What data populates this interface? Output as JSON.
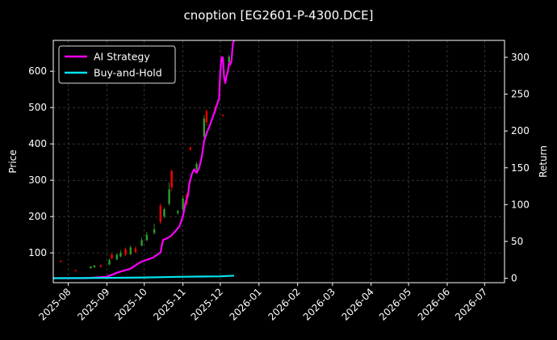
{
  "chart_data": {
    "type": "line",
    "title": "cnoption [EG2601-P-4300.DCE]",
    "xlabel": "",
    "ylabel": "Price",
    "y2label": "Return",
    "xlim": [
      "2025-07-20",
      "2026-07-17"
    ],
    "ylim": [
      18,
      685
    ],
    "y2lim": [
      -6,
      323
    ],
    "xticks": [
      "2025-08",
      "2025-09",
      "2025-10",
      "2025-11",
      "2025-12",
      "2026-01",
      "2026-02",
      "2026-03",
      "2026-04",
      "2026-05",
      "2026-06",
      "2026-07"
    ],
    "yticks": [
      100,
      200,
      300,
      400,
      500,
      600
    ],
    "y2ticks": [
      0,
      50,
      100,
      150,
      200,
      250,
      300
    ],
    "grid": true,
    "legend": "top-left",
    "colors": {
      "up": "#2ca02c",
      "down": "#ff0000",
      "ai": "#ff00ff",
      "bh": "#00e5ee",
      "grid": "#555555"
    },
    "candles": [
      {
        "x": "2025-07-26",
        "o": 78,
        "c": 75,
        "h": 80,
        "l": 74
      },
      {
        "x": "2025-08-07",
        "o": 52,
        "c": 50,
        "h": 54,
        "l": 49
      },
      {
        "x": "2025-08-19",
        "o": 58,
        "c": 62,
        "h": 64,
        "l": 56
      },
      {
        "x": "2025-08-22",
        "o": 60,
        "c": 65,
        "h": 67,
        "l": 59
      },
      {
        "x": "2025-08-27",
        "o": 66,
        "c": 62,
        "h": 68,
        "l": 60
      },
      {
        "x": "2025-09-03",
        "o": 68,
        "c": 80,
        "h": 85,
        "l": 66
      },
      {
        "x": "2025-09-05",
        "o": 95,
        "c": 85,
        "h": 100,
        "l": 82
      },
      {
        "x": "2025-09-09",
        "o": 82,
        "c": 95,
        "h": 98,
        "l": 80
      },
      {
        "x": "2025-09-12",
        "o": 90,
        "c": 100,
        "h": 108,
        "l": 88
      },
      {
        "x": "2025-09-16",
        "o": 110,
        "c": 95,
        "h": 115,
        "l": 92
      },
      {
        "x": "2025-09-20",
        "o": 96,
        "c": 115,
        "h": 120,
        "l": 94
      },
      {
        "x": "2025-09-24",
        "o": 112,
        "c": 102,
        "h": 118,
        "l": 99
      },
      {
        "x": "2025-09-29",
        "o": 120,
        "c": 135,
        "h": 142,
        "l": 118
      },
      {
        "x": "2025-10-03",
        "o": 135,
        "c": 150,
        "h": 158,
        "l": 132
      },
      {
        "x": "2025-10-09",
        "o": 155,
        "c": 165,
        "h": 180,
        "l": 150
      },
      {
        "x": "2025-10-14",
        "o": 230,
        "c": 185,
        "h": 236,
        "l": 180
      },
      {
        "x": "2025-10-17",
        "o": 200,
        "c": 220,
        "h": 225,
        "l": 196
      },
      {
        "x": "2025-10-21",
        "o": 235,
        "c": 275,
        "h": 295,
        "l": 230
      },
      {
        "x": "2025-10-23",
        "o": 325,
        "c": 280,
        "h": 330,
        "l": 270
      },
      {
        "x": "2025-10-28",
        "o": 210,
        "c": 215,
        "h": 218,
        "l": 205
      },
      {
        "x": "2025-11-01",
        "o": 220,
        "c": 250,
        "h": 258,
        "l": 215
      },
      {
        "x": "2025-11-04",
        "o": 260,
        "c": 235,
        "h": 265,
        "l": 230
      },
      {
        "x": "2025-11-07",
        "o": 390,
        "c": 385,
        "h": 392,
        "l": 380
      },
      {
        "x": "2025-11-12",
        "o": 330,
        "c": 345,
        "h": 350,
        "l": 325
      },
      {
        "x": "2025-11-18",
        "o": 420,
        "c": 470,
        "h": 480,
        "l": 415
      },
      {
        "x": "2025-11-20",
        "o": 490,
        "c": 460,
        "h": 495,
        "l": 450
      },
      {
        "x": "2025-11-27",
        "o": 500,
        "c": 490,
        "h": 505,
        "l": 485
      },
      {
        "x": "2025-12-03",
        "o": 480,
        "c": 478,
        "h": 482,
        "l": 475
      },
      {
        "x": "2025-12-08",
        "o": 625,
        "c": 640,
        "h": 645,
        "l": 620
      }
    ],
    "series": [
      {
        "name": "AI Strategy",
        "axis": "right",
        "x": [
          "2025-07-20",
          "2025-08-15",
          "2025-09-01",
          "2025-09-10",
          "2025-09-20",
          "2025-09-28",
          "2025-10-08",
          "2025-10-14",
          "2025-10-16",
          "2025-10-19",
          "2025-10-22",
          "2025-10-26",
          "2025-10-29",
          "2025-11-01",
          "2025-11-03",
          "2025-11-05",
          "2025-11-06",
          "2025-11-08",
          "2025-11-10",
          "2025-11-12",
          "2025-11-14",
          "2025-11-16",
          "2025-11-18",
          "2025-11-20",
          "2025-11-22",
          "2025-11-24",
          "2025-11-26",
          "2025-11-28",
          "2025-11-30",
          "2025-12-01",
          "2025-12-02",
          "2025-12-03",
          "2025-12-04",
          "2025-12-05",
          "2025-12-06",
          "2025-12-07",
          "2025-12-08",
          "2025-12-09",
          "2025-12-10",
          "2025-12-11",
          "2025-12-12"
        ],
        "values": [
          0,
          0,
          2,
          8,
          13,
          22,
          28,
          35,
          52,
          54,
          57,
          64,
          70,
          84,
          102,
          112,
          127,
          141,
          148,
          143,
          150,
          164,
          186,
          197,
          205,
          214,
          224,
          234,
          244,
          280,
          300,
          300,
          273,
          265,
          275,
          280,
          292,
          290,
          296,
          318,
          323
        ]
      },
      {
        "name": "Buy-and-Hold",
        "axis": "right",
        "x": [
          "2025-07-20",
          "2025-09-01",
          "2025-10-01",
          "2025-11-01",
          "2025-12-01",
          "2025-12-12"
        ],
        "values": [
          0,
          0.5,
          1,
          2,
          2.5,
          3.5
        ]
      }
    ]
  }
}
